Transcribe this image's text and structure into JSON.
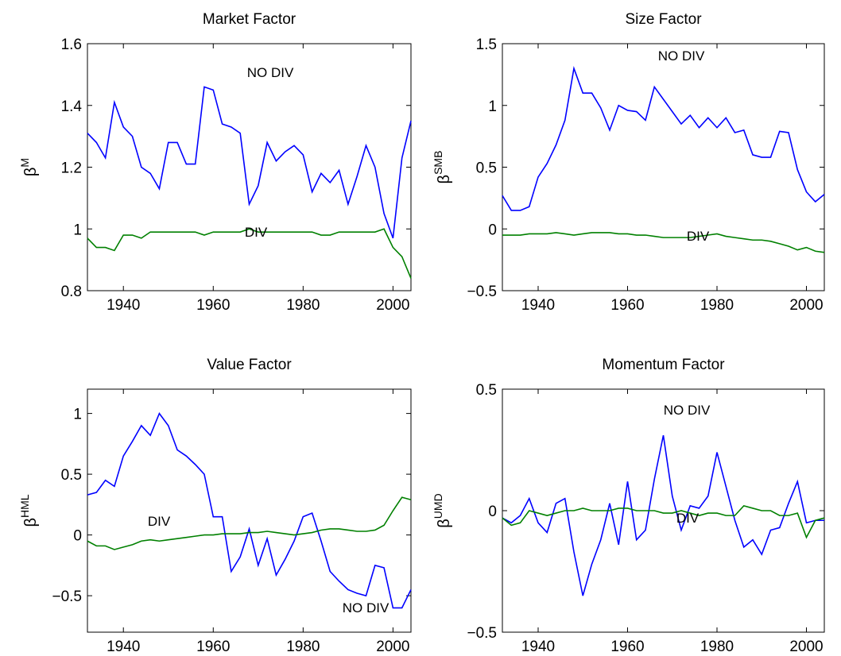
{
  "chart_data": [
    {
      "type": "line",
      "title": "Market Factor",
      "ylabel": "β",
      "ylabel_superscript": "M",
      "x": [
        1932,
        1934,
        1936,
        1938,
        1940,
        1942,
        1944,
        1946,
        1948,
        1950,
        1952,
        1954,
        1956,
        1958,
        1960,
        1962,
        1964,
        1966,
        1968,
        1970,
        1972,
        1974,
        1976,
        1978,
        1980,
        1982,
        1984,
        1986,
        1988,
        1990,
        1992,
        1994,
        1996,
        1998,
        2000,
        2002,
        2004
      ],
      "xlim": [
        1932,
        2004
      ],
      "xticks": [
        1940,
        1960,
        1980,
        2000
      ],
      "ylim": [
        0.8,
        1.6
      ],
      "yticks": [
        0.8,
        1,
        1.2,
        1.4,
        1.6
      ],
      "series": [
        {
          "name": "NO DIV",
          "color": "#0000ff",
          "values": [
            1.31,
            1.28,
            1.23,
            1.41,
            1.33,
            1.3,
            1.2,
            1.18,
            1.13,
            1.28,
            1.28,
            1.21,
            1.21,
            1.46,
            1.45,
            1.34,
            1.33,
            1.31,
            1.08,
            1.14,
            1.28,
            1.22,
            1.25,
            1.27,
            1.24,
            1.12,
            1.18,
            1.15,
            1.19,
            1.08,
            1.17,
            1.27,
            1.2,
            1.05,
            0.97,
            1.23,
            1.35
          ]
        },
        {
          "name": "DIV",
          "color": "#008000",
          "values": [
            0.97,
            0.94,
            0.94,
            0.93,
            0.98,
            0.98,
            0.97,
            0.99,
            0.99,
            0.99,
            0.99,
            0.99,
            0.99,
            0.98,
            0.99,
            0.99,
            0.99,
            0.99,
            1.0,
            0.99,
            0.99,
            0.99,
            0.99,
            0.99,
            0.99,
            0.99,
            0.98,
            0.98,
            0.99,
            0.99,
            0.99,
            0.99,
            0.99,
            1.0,
            0.94,
            0.91,
            0.84
          ]
        }
      ]
    },
    {
      "type": "line",
      "title": "Size Factor",
      "ylabel": "β",
      "ylabel_superscript": "SMB",
      "x": [
        1932,
        1934,
        1936,
        1938,
        1940,
        1942,
        1944,
        1946,
        1948,
        1950,
        1952,
        1954,
        1956,
        1958,
        1960,
        1962,
        1964,
        1966,
        1968,
        1970,
        1972,
        1974,
        1976,
        1978,
        1980,
        1982,
        1984,
        1986,
        1988,
        1990,
        1992,
        1994,
        1996,
        1998,
        2000,
        2002,
        2004
      ],
      "xlim": [
        1932,
        2004
      ],
      "xticks": [
        1940,
        1960,
        1980,
        2000
      ],
      "ylim": [
        -0.5,
        1.5
      ],
      "yticks": [
        {
          "value": -0.5,
          "label": "−0.5"
        },
        0,
        0.5,
        1,
        1.5
      ],
      "series": [
        {
          "name": "NO DIV",
          "color": "#0000ff",
          "values": [
            0.27,
            0.15,
            0.15,
            0.18,
            0.42,
            0.53,
            0.68,
            0.88,
            1.3,
            1.1,
            1.1,
            0.98,
            0.8,
            1.0,
            0.96,
            0.95,
            0.88,
            1.15,
            1.05,
            0.95,
            0.85,
            0.92,
            0.82,
            0.9,
            0.82,
            0.9,
            0.78,
            0.8,
            0.6,
            0.58,
            0.58,
            0.79,
            0.78,
            0.48,
            0.3,
            0.22,
            0.28
          ]
        },
        {
          "name": "DIV",
          "color": "#008000",
          "values": [
            -0.05,
            -0.05,
            -0.05,
            -0.04,
            -0.04,
            -0.04,
            -0.03,
            -0.04,
            -0.05,
            -0.04,
            -0.03,
            -0.03,
            -0.03,
            -0.04,
            -0.04,
            -0.05,
            -0.05,
            -0.06,
            -0.07,
            -0.07,
            -0.07,
            -0.07,
            -0.06,
            -0.05,
            -0.04,
            -0.06,
            -0.07,
            -0.08,
            -0.09,
            -0.09,
            -0.1,
            -0.12,
            -0.14,
            -0.17,
            -0.15,
            -0.18,
            -0.19
          ]
        }
      ]
    },
    {
      "type": "line",
      "title": "Value Factor",
      "ylabel": "β",
      "ylabel_superscript": "HML",
      "x": [
        1932,
        1934,
        1936,
        1938,
        1940,
        1942,
        1944,
        1946,
        1948,
        1950,
        1952,
        1954,
        1956,
        1958,
        1960,
        1962,
        1964,
        1966,
        1968,
        1970,
        1972,
        1974,
        1976,
        1978,
        1980,
        1982,
        1984,
        1986,
        1988,
        1990,
        1992,
        1994,
        1996,
        1998,
        2000,
        2002,
        2004
      ],
      "xlim": [
        1932,
        2004
      ],
      "xticks": [
        1940,
        1960,
        1980,
        2000
      ],
      "ylim": [
        -0.8,
        1.2
      ],
      "yticks": [
        {
          "value": -0.5,
          "label": "−0.5"
        },
        0,
        0.5,
        1
      ],
      "series": [
        {
          "name": "NO DIV",
          "color": "#0000ff",
          "values": [
            0.33,
            0.35,
            0.45,
            0.4,
            0.65,
            0.77,
            0.9,
            0.82,
            1.0,
            0.9,
            0.7,
            0.65,
            0.58,
            0.5,
            0.15,
            0.15,
            -0.3,
            -0.18,
            0.05,
            -0.25,
            -0.03,
            -0.33,
            -0.2,
            -0.05,
            0.15,
            0.18,
            -0.05,
            -0.3,
            -0.38,
            -0.45,
            -0.48,
            -0.5,
            -0.25,
            -0.27,
            -0.6,
            -0.6,
            -0.45
          ]
        },
        {
          "name": "DIV",
          "color": "#008000",
          "values": [
            -0.05,
            -0.09,
            -0.09,
            -0.12,
            -0.1,
            -0.08,
            -0.05,
            -0.04,
            -0.05,
            -0.04,
            -0.03,
            -0.02,
            -0.01,
            0.0,
            0.0,
            0.01,
            0.01,
            0.01,
            0.02,
            0.02,
            0.03,
            0.02,
            0.01,
            0.0,
            0.01,
            0.02,
            0.04,
            0.05,
            0.05,
            0.04,
            0.03,
            0.03,
            0.04,
            0.08,
            0.2,
            0.31,
            0.29
          ]
        }
      ]
    },
    {
      "type": "line",
      "title": "Momentum Factor",
      "ylabel": "β",
      "ylabel_superscript": "UMD",
      "x": [
        1932,
        1934,
        1936,
        1938,
        1940,
        1942,
        1944,
        1946,
        1948,
        1950,
        1952,
        1954,
        1956,
        1958,
        1960,
        1962,
        1964,
        1966,
        1968,
        1970,
        1972,
        1974,
        1976,
        1978,
        1980,
        1982,
        1984,
        1986,
        1988,
        1990,
        1992,
        1994,
        1996,
        1998,
        2000,
        2002,
        2004
      ],
      "xlim": [
        1932,
        2004
      ],
      "xticks": [
        1940,
        1960,
        1980,
        2000
      ],
      "ylim": [
        -0.5,
        0.5
      ],
      "yticks": [
        {
          "value": -0.5,
          "label": "−0.5"
        },
        0,
        0.5
      ],
      "series": [
        {
          "name": "NO DIV",
          "color": "#0000ff",
          "values": [
            -0.03,
            -0.05,
            -0.02,
            0.05,
            -0.05,
            -0.09,
            0.03,
            0.05,
            -0.17,
            -0.35,
            -0.22,
            -0.12,
            0.03,
            -0.14,
            0.12,
            -0.12,
            -0.08,
            0.13,
            0.31,
            0.06,
            -0.08,
            0.02,
            0.01,
            0.06,
            0.24,
            0.1,
            -0.04,
            -0.15,
            -0.12,
            -0.18,
            -0.08,
            -0.07,
            0.03,
            0.12,
            -0.05,
            -0.04,
            -0.04
          ]
        },
        {
          "name": "DIV",
          "color": "#008000",
          "values": [
            -0.03,
            -0.06,
            -0.05,
            0.0,
            -0.01,
            -0.02,
            -0.01,
            0.0,
            0.0,
            0.01,
            0.0,
            0.0,
            0.0,
            0.01,
            0.01,
            0.0,
            0.0,
            0.0,
            -0.01,
            -0.01,
            0.0,
            -0.01,
            -0.02,
            -0.01,
            -0.01,
            -0.02,
            -0.02,
            0.02,
            0.01,
            0.0,
            0.0,
            -0.02,
            -0.02,
            -0.01,
            -0.11,
            -0.04,
            -0.03
          ]
        }
      ]
    }
  ]
}
